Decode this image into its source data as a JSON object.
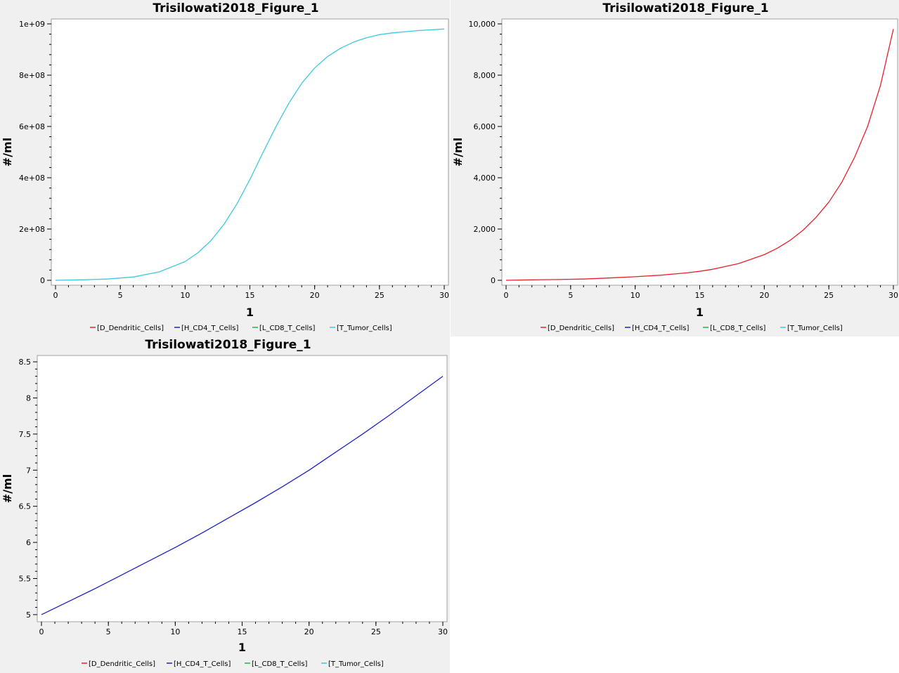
{
  "legend": [
    {
      "name": "[D_Dendritic_Cells]",
      "color": "#e8212b"
    },
    {
      "name": "[H_CD4_T_Cells]",
      "color": "#2020c8"
    },
    {
      "name": "[L_CD8_T_Cells]",
      "color": "#22b24a"
    },
    {
      "name": "[T_Tumor_Cells]",
      "color": "#3ec8e0"
    }
  ],
  "chart_data": [
    {
      "type": "line",
      "title": "Trisilowati2018_Figure_1",
      "xlabel": "1",
      "ylabel": "#/ml",
      "xlim": [
        0,
        30
      ],
      "ylim": [
        0,
        1000000000
      ],
      "xticks": [
        "0",
        "5",
        "10",
        "15",
        "20",
        "25",
        "30"
      ],
      "yticks": [
        "0",
        "2e+08",
        "4e+08",
        "6e+08",
        "8e+08",
        "1e+09"
      ],
      "legend_position": "bottom",
      "series": [
        {
          "name": "[T_Tumor_Cells]",
          "color": "#3ec8e0",
          "x": [
            0,
            2,
            4,
            6,
            8,
            10,
            11,
            12,
            13,
            14,
            15,
            16,
            17,
            18,
            19,
            20,
            21,
            22,
            23,
            24,
            25,
            26,
            28,
            30
          ],
          "y": [
            0,
            2000000,
            5000000,
            13000000,
            33000000,
            73000000,
            108000000,
            155000000,
            218000000,
            298000000,
            393000000,
            497000000,
            598000000,
            690000000,
            768000000,
            828000000,
            873000000,
            905000000,
            929000000,
            946000000,
            958000000,
            965000000,
            974000000,
            980000000
          ]
        }
      ]
    },
    {
      "type": "line",
      "title": "Trisilowati2018_Figure_1",
      "xlabel": "1",
      "ylabel": "#/ml",
      "xlim": [
        0,
        30
      ],
      "ylim": [
        0,
        10000
      ],
      "xticks": [
        "0",
        "5",
        "10",
        "15",
        "20",
        "25",
        "30"
      ],
      "yticks": [
        "0",
        "2,000",
        "4,000",
        "6,000",
        "8,000",
        "10,000"
      ],
      "legend_position": "bottom",
      "series": [
        {
          "name": "[D_Dendritic_Cells]",
          "color": "#e8212b",
          "x": [
            0,
            2,
            4,
            6,
            8,
            10,
            12,
            14,
            15,
            16,
            18,
            20,
            21,
            22,
            23,
            24,
            25,
            26,
            27,
            28,
            29,
            30
          ],
          "y": [
            0,
            20,
            30,
            50,
            90,
            140,
            200,
            290,
            350,
            430,
            650,
            1000,
            1250,
            1560,
            1950,
            2450,
            3050,
            3820,
            4800,
            6000,
            7600,
            9800
          ]
        }
      ]
    },
    {
      "type": "line",
      "title": "Trisilowati2018_Figure_1",
      "xlabel": "1",
      "ylabel": "#/ml",
      "xlim": [
        0,
        30
      ],
      "ylim": [
        4.97,
        8.52
      ],
      "xticks": [
        "0",
        "5",
        "10",
        "15",
        "20",
        "25",
        "30"
      ],
      "yticks": [
        "5",
        "5.5",
        "6",
        "6.5",
        "7",
        "7.5",
        "8",
        "8.5"
      ],
      "legend_position": "bottom",
      "series": [
        {
          "name": "[H_CD4_T_Cells]",
          "color": "#2020c8",
          "x": [
            0,
            2,
            4,
            6,
            8,
            10,
            12,
            14,
            16,
            18,
            20,
            22,
            24,
            26,
            28,
            30
          ],
          "y": [
            5.0,
            5.18,
            5.36,
            5.55,
            5.74,
            5.93,
            6.13,
            6.34,
            6.55,
            6.77,
            7.0,
            7.25,
            7.5,
            7.76,
            8.03,
            8.3
          ]
        }
      ]
    }
  ]
}
